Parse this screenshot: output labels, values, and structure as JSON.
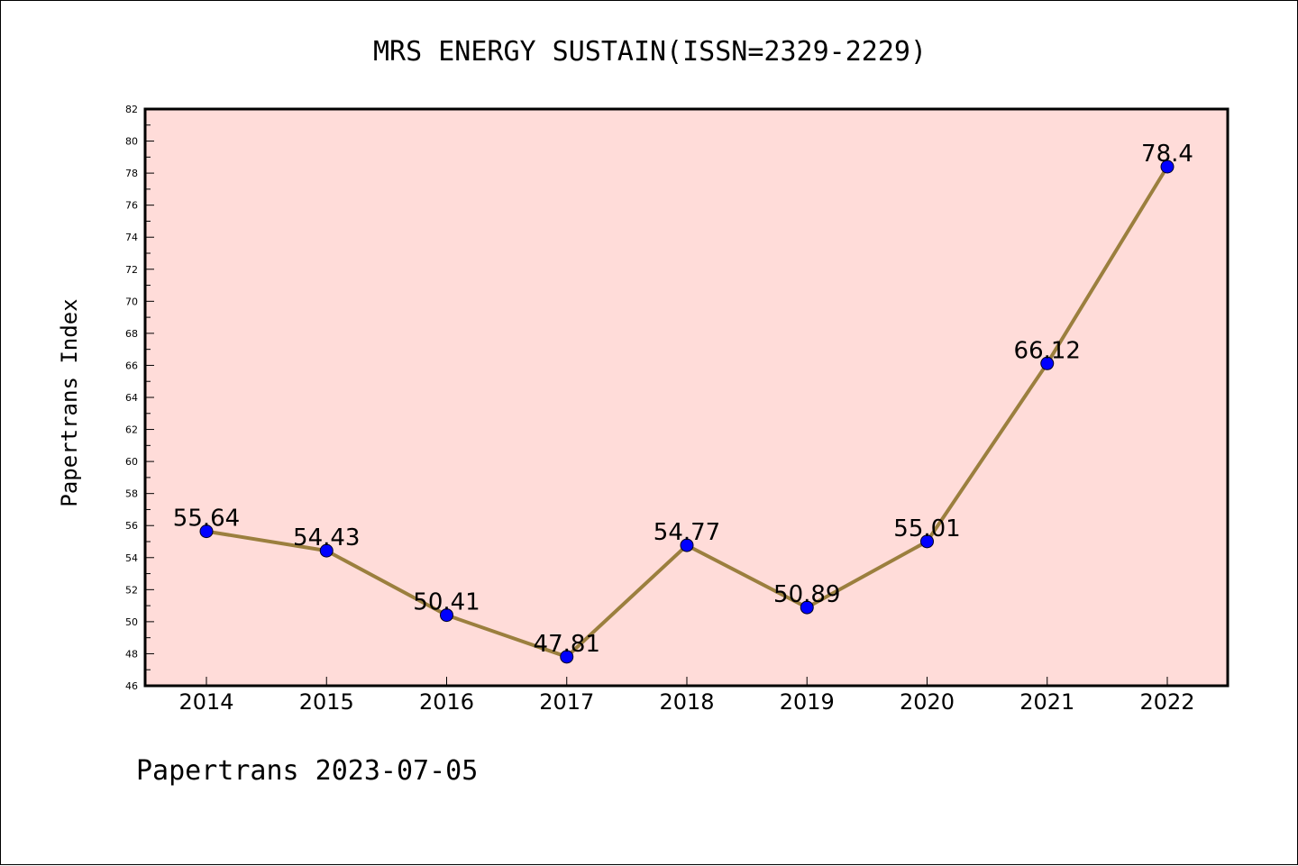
{
  "chart_data": {
    "type": "line",
    "title": "MRS ENERGY SUSTAIN(ISSN=2329-2229)",
    "xlabel": "",
    "ylabel": "Papertrans Index",
    "footer": "Papertrans 2023-07-05",
    "categories": [
      "2014",
      "2015",
      "2016",
      "2017",
      "2018",
      "2019",
      "2020",
      "2021",
      "2022"
    ],
    "values": [
      55.64,
      54.43,
      50.41,
      47.81,
      54.77,
      50.89,
      55.01,
      66.12,
      78.4
    ],
    "value_labels": [
      "55.64",
      "54.43",
      "50.41",
      "47.81",
      "54.77",
      "50.89",
      "55.01",
      "66.12",
      "78.4"
    ],
    "ylim": [
      46,
      82
    ],
    "yticks": [
      "46",
      "48",
      "50",
      "52",
      "54",
      "56",
      "58",
      "60",
      "62",
      "64",
      "66",
      "68",
      "70",
      "72",
      "74",
      "76",
      "78",
      "80",
      "82"
    ],
    "grid": false,
    "colors": {
      "plot_background": "#ffdcd9",
      "line": "#9b7f3e",
      "marker": "#0000ff"
    }
  }
}
